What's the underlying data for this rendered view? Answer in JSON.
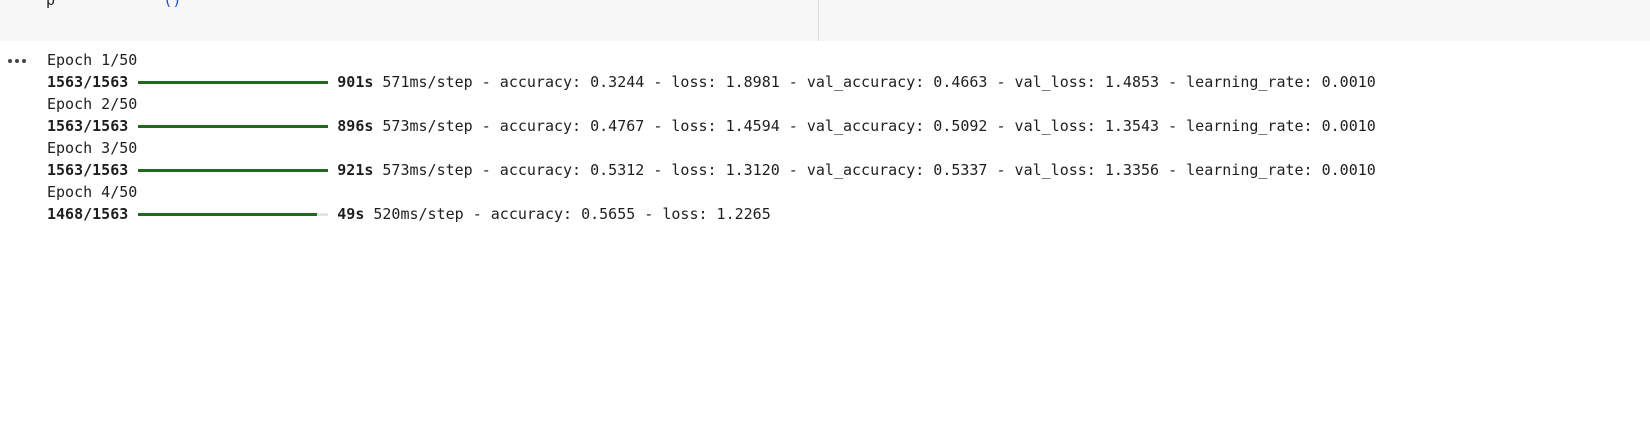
{
  "code_cell": {
    "visible_code": "p",
    "visible_paren": "()"
  },
  "output_menu_icon": "more-horizontal-icon",
  "colors": {
    "progress_fill": "#1e6b1e",
    "progress_track": "#e3e3e3"
  },
  "epochs": [
    {
      "label": "Epoch 1/50",
      "steps": "1563/1563",
      "progress": 1.0,
      "time": "901s",
      "metrics": "571ms/step - accuracy: 0.3244 - loss: 1.8981 - val_accuracy: 0.4663 - val_loss: 1.4853 - learning_rate: 0.0010"
    },
    {
      "label": "Epoch 2/50",
      "steps": "1563/1563",
      "progress": 1.0,
      "time": "896s",
      "metrics": "573ms/step - accuracy: 0.4767 - loss: 1.4594 - val_accuracy: 0.5092 - val_loss: 1.3543 - learning_rate: 0.0010"
    },
    {
      "label": "Epoch 3/50",
      "steps": "1563/1563",
      "progress": 1.0,
      "time": "921s",
      "metrics": "573ms/step - accuracy: 0.5312 - loss: 1.3120 - val_accuracy: 0.5337 - val_loss: 1.3356 - learning_rate: 0.0010"
    },
    {
      "label": "Epoch 4/50",
      "steps": "1468/1563",
      "progress": 0.939,
      "time": "49s",
      "metrics": "520ms/step - accuracy: 0.5655 - loss: 1.2265"
    }
  ]
}
